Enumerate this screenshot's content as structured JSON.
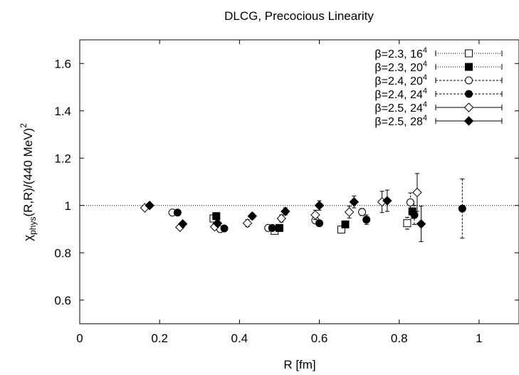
{
  "chart_data": {
    "type": "scatter",
    "title": "DLCG, Precocious Linearity",
    "xlabel": "R [fm]",
    "ylabel_parts": [
      "χ",
      "phys",
      "(R,R)/(440 MeV)",
      "2"
    ],
    "xlim": [
      0,
      1.1
    ],
    "ylim": [
      0.5,
      1.7
    ],
    "x_ticks": [
      0,
      0.2,
      0.4,
      0.6,
      0.8,
      1
    ],
    "x_tick_labels": [
      "0",
      "0.2",
      "0.4",
      "0.6",
      "0.8",
      "1"
    ],
    "y_ticks": [
      0.6,
      0.8,
      1,
      1.2,
      1.4,
      1.6
    ],
    "y_tick_labels": [
      "0.6",
      "0.8",
      "1",
      "1.2",
      "1.4",
      "1.6"
    ],
    "reference_line": 1,
    "grid": false,
    "legend_position": "top-right",
    "series": [
      {
        "name": "β=2.3, 16",
        "name_sup": "4",
        "marker": "square-open",
        "line_style": "dotted",
        "points": [
          {
            "x": 0.335,
            "y": 0.945,
            "err": 0.01
          },
          {
            "x": 0.488,
            "y": 0.893,
            "err": 0.01
          },
          {
            "x": 0.655,
            "y": 0.898,
            "err": 0.012
          },
          {
            "x": 0.82,
            "y": 0.925,
            "err": 0.025
          }
        ]
      },
      {
        "name": "β=2.3, 20",
        "name_sup": "4",
        "marker": "square-filled",
        "line_style": "dotted",
        "points": [
          {
            "x": 0.342,
            "y": 0.955,
            "err": 0.01
          },
          {
            "x": 0.5,
            "y": 0.905,
            "err": 0.01
          },
          {
            "x": 0.665,
            "y": 0.92,
            "err": 0.012
          },
          {
            "x": 0.833,
            "y": 0.975,
            "err": 0.03
          }
        ]
      },
      {
        "name": "β=2.4, 20",
        "name_sup": "4",
        "marker": "circle-open",
        "line_style": "dashed",
        "points": [
          {
            "x": 0.232,
            "y": 0.97,
            "err": 0.008
          },
          {
            "x": 0.352,
            "y": 0.9,
            "err": 0.008
          },
          {
            "x": 0.472,
            "y": 0.905,
            "err": 0.01
          },
          {
            "x": 0.59,
            "y": 0.937,
            "err": 0.012
          },
          {
            "x": 0.707,
            "y": 0.972,
            "err": 0.015
          },
          {
            "x": 0.828,
            "y": 1.013,
            "err": 0.04
          }
        ]
      },
      {
        "name": "β=2.4, 24",
        "name_sup": "4",
        "marker": "circle-filled",
        "line_style": "dashed",
        "points": [
          {
            "x": 0.245,
            "y": 0.97,
            "err": 0.008
          },
          {
            "x": 0.362,
            "y": 0.903,
            "err": 0.008
          },
          {
            "x": 0.482,
            "y": 0.905,
            "err": 0.01
          },
          {
            "x": 0.6,
            "y": 0.925,
            "err": 0.012
          },
          {
            "x": 0.718,
            "y": 0.94,
            "err": 0.02
          },
          {
            "x": 0.838,
            "y": 0.96,
            "err": 0.04
          },
          {
            "x": 0.958,
            "y": 0.987,
            "err": 0.125
          }
        ]
      },
      {
        "name": "β=2.5, 24",
        "name_sup": "4",
        "marker": "diamond-open",
        "line_style": "solid",
        "points": [
          {
            "x": 0.163,
            "y": 0.99,
            "err": 0.008
          },
          {
            "x": 0.251,
            "y": 0.908,
            "err": 0.01
          },
          {
            "x": 0.338,
            "y": 0.91,
            "err": 0.012
          },
          {
            "x": 0.42,
            "y": 0.925,
            "err": 0.015
          },
          {
            "x": 0.505,
            "y": 0.945,
            "err": 0.015
          },
          {
            "x": 0.59,
            "y": 0.96,
            "err": 0.02
          },
          {
            "x": 0.675,
            "y": 0.972,
            "err": 0.025
          },
          {
            "x": 0.757,
            "y": 1.015,
            "err": 0.045
          },
          {
            "x": 0.845,
            "y": 1.055,
            "err": 0.08
          }
        ]
      },
      {
        "name": "β=2.5, 28",
        "name_sup": "4",
        "marker": "diamond-filled",
        "line_style": "solid",
        "points": [
          {
            "x": 0.175,
            "y": 1.0,
            "err": 0.008
          },
          {
            "x": 0.258,
            "y": 0.922,
            "err": 0.01
          },
          {
            "x": 0.345,
            "y": 0.925,
            "err": 0.012
          },
          {
            "x": 0.432,
            "y": 0.955,
            "err": 0.012
          },
          {
            "x": 0.515,
            "y": 0.975,
            "err": 0.015
          },
          {
            "x": 0.6,
            "y": 1.0,
            "err": 0.02
          },
          {
            "x": 0.687,
            "y": 1.015,
            "err": 0.025
          },
          {
            "x": 0.77,
            "y": 1.02,
            "err": 0.045
          },
          {
            "x": 0.855,
            "y": 0.922,
            "err": 0.075
          }
        ]
      }
    ]
  }
}
